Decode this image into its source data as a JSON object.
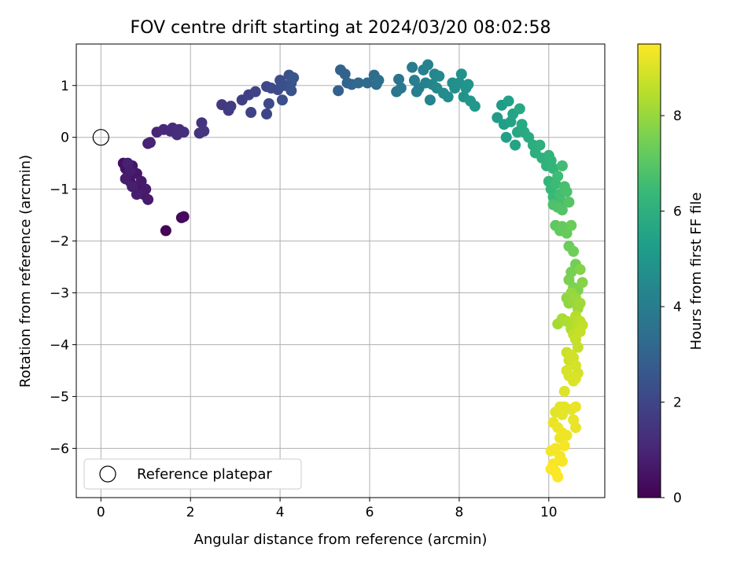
{
  "chart_data": {
    "type": "scatter",
    "title": "FOV centre drift starting at 2024/03/20 08:02:58",
    "xlabel": "Angular distance from reference (arcmin)",
    "ylabel": "Rotation from reference (arcmin)",
    "xlim": [
      -0.55,
      11.25
    ],
    "ylim": [
      -6.95,
      1.8
    ],
    "xticks": [
      0,
      2,
      4,
      6,
      8,
      10
    ],
    "yticks": [
      1,
      0,
      -1,
      -2,
      -3,
      -4,
      -5,
      -6
    ],
    "xtick_labels": [
      "0",
      "2",
      "4",
      "6",
      "8",
      "10"
    ],
    "ytick_labels": [
      "1",
      "0",
      "−1",
      "−2",
      "−3",
      "−4",
      "−5",
      "−6"
    ],
    "grid": true,
    "legend": {
      "placement": "lower-left",
      "entries": [
        "Reference platepar"
      ]
    },
    "reference_point": {
      "x": 0,
      "y": 0
    },
    "colorbar": {
      "label": "Hours from first FF file",
      "colormap": "viridis",
      "range": [
        0,
        9.5
      ],
      "ticks": [
        0,
        2,
        4,
        6,
        8
      ],
      "tick_labels": [
        "0",
        "2",
        "4",
        "6",
        "8"
      ],
      "colors": [
        "#440154",
        "#482878",
        "#3e4989",
        "#31688e",
        "#26828e",
        "#1f9e89",
        "#35b779",
        "#6ece58",
        "#b5de2b",
        "#fde725"
      ]
    },
    "series": [
      {
        "points": [
          [
            1.45,
            -1.8,
            0.1
          ],
          [
            1.8,
            -1.55,
            0.2
          ],
          [
            1.85,
            -1.53,
            0.25
          ],
          [
            0.5,
            -0.5,
            0.4
          ],
          [
            0.55,
            -0.6,
            0.45
          ],
          [
            0.6,
            -0.75,
            0.5
          ],
          [
            0.65,
            -0.85,
            0.5
          ],
          [
            0.7,
            -0.55,
            0.55
          ],
          [
            0.75,
            -0.95,
            0.55
          ],
          [
            0.8,
            -0.7,
            0.6
          ],
          [
            0.85,
            -1.05,
            0.6
          ],
          [
            0.9,
            -0.85,
            0.65
          ],
          [
            0.95,
            -1.1,
            0.65
          ],
          [
            1.0,
            -1.0,
            0.7
          ],
          [
            1.05,
            -1.2,
            0.7
          ],
          [
            0.55,
            -0.8,
            0.75
          ],
          [
            0.65,
            -0.65,
            0.75
          ],
          [
            0.7,
            -0.95,
            0.8
          ],
          [
            0.8,
            -1.1,
            0.8
          ],
          [
            0.6,
            -0.5,
            0.85
          ],
          [
            1.05,
            -0.12,
            0.9
          ],
          [
            1.1,
            -0.1,
            0.95
          ],
          [
            1.25,
            0.1,
            1.0
          ],
          [
            1.4,
            0.15,
            1.05
          ],
          [
            1.55,
            0.12,
            1.1
          ],
          [
            1.6,
            0.18,
            1.15
          ],
          [
            1.7,
            0.05,
            1.2
          ],
          [
            1.75,
            0.15,
            1.25
          ],
          [
            1.85,
            0.1,
            1.3
          ],
          [
            2.2,
            0.08,
            1.4
          ],
          [
            2.25,
            0.28,
            1.45
          ],
          [
            2.3,
            0.12,
            1.5
          ],
          [
            2.7,
            0.63,
            1.6
          ],
          [
            2.85,
            0.52,
            1.65
          ],
          [
            2.9,
            0.6,
            1.7
          ],
          [
            3.15,
            0.72,
            1.8
          ],
          [
            3.3,
            0.82,
            1.85
          ],
          [
            3.35,
            0.48,
            1.9
          ],
          [
            3.45,
            0.88,
            1.95
          ],
          [
            3.7,
            0.45,
            2.0
          ],
          [
            3.7,
            0.98,
            2.05
          ],
          [
            3.75,
            0.65,
            2.1
          ],
          [
            3.8,
            0.95,
            2.15
          ],
          [
            3.95,
            0.92,
            2.2
          ],
          [
            4.0,
            1.1,
            2.25
          ],
          [
            4.05,
            0.72,
            2.3
          ],
          [
            4.1,
            1.0,
            2.35
          ],
          [
            4.2,
            1.2,
            2.4
          ],
          [
            4.25,
            0.9,
            2.45
          ],
          [
            4.25,
            1.05,
            2.5
          ],
          [
            4.3,
            1.15,
            2.55
          ],
          [
            5.3,
            0.9,
            2.9
          ],
          [
            5.35,
            1.3,
            2.95
          ],
          [
            5.45,
            1.22,
            3.0
          ],
          [
            5.5,
            1.05,
            3.05
          ],
          [
            5.6,
            1.02,
            3.1
          ],
          [
            5.75,
            1.05,
            3.15
          ],
          [
            5.95,
            1.05,
            3.25
          ],
          [
            6.1,
            1.2,
            3.35
          ],
          [
            6.15,
            1.02,
            3.4
          ],
          [
            6.2,
            1.1,
            3.45
          ],
          [
            6.6,
            0.88,
            3.7
          ],
          [
            6.65,
            1.12,
            3.75
          ],
          [
            6.7,
            0.95,
            3.8
          ],
          [
            6.95,
            1.35,
            3.95
          ],
          [
            7.0,
            1.1,
            4.0
          ],
          [
            7.05,
            0.88,
            4.05
          ],
          [
            7.1,
            0.95,
            4.1
          ],
          [
            7.2,
            1.3,
            4.15
          ],
          [
            7.25,
            1.05,
            4.2
          ],
          [
            7.3,
            1.4,
            4.25
          ],
          [
            7.35,
            0.72,
            4.3
          ],
          [
            7.4,
            1.02,
            4.35
          ],
          [
            7.45,
            1.22,
            4.4
          ],
          [
            7.5,
            0.95,
            4.45
          ],
          [
            7.55,
            1.18,
            4.5
          ],
          [
            7.65,
            0.85,
            4.55
          ],
          [
            7.75,
            0.78,
            4.6
          ],
          [
            7.85,
            1.05,
            4.65
          ],
          [
            7.9,
            0.95,
            4.7
          ],
          [
            8.0,
            1.05,
            4.75
          ],
          [
            8.05,
            1.22,
            4.8
          ],
          [
            8.1,
            0.78,
            4.85
          ],
          [
            8.15,
            0.95,
            4.9
          ],
          [
            8.2,
            1.02,
            4.95
          ],
          [
            8.25,
            0.7,
            5.0
          ],
          [
            8.35,
            0.6,
            5.05
          ],
          [
            8.85,
            0.38,
            5.2
          ],
          [
            8.95,
            0.62,
            5.25
          ],
          [
            9.0,
            0.25,
            5.3
          ],
          [
            9.05,
            0.0,
            5.35
          ],
          [
            9.1,
            0.7,
            5.4
          ],
          [
            9.15,
            0.3,
            5.45
          ],
          [
            9.2,
            0.45,
            5.5
          ],
          [
            9.25,
            -0.15,
            5.55
          ],
          [
            9.3,
            0.1,
            5.6
          ],
          [
            9.35,
            0.55,
            5.65
          ],
          [
            9.4,
            0.25,
            5.7
          ],
          [
            9.45,
            0.1,
            5.75
          ],
          [
            9.55,
            0.0,
            5.8
          ],
          [
            9.65,
            -0.15,
            5.9
          ],
          [
            9.7,
            -0.3,
            5.95
          ],
          [
            9.8,
            -0.15,
            6.0
          ],
          [
            9.85,
            -0.4,
            6.05
          ],
          [
            9.95,
            -0.55,
            6.1
          ],
          [
            10.0,
            -0.35,
            6.15
          ],
          [
            10.05,
            -0.45,
            6.2
          ],
          [
            10.1,
            -0.6,
            6.25
          ],
          [
            10.0,
            -0.85,
            6.3
          ],
          [
            10.05,
            -1.0,
            6.35
          ],
          [
            10.1,
            -1.15,
            6.4
          ],
          [
            10.15,
            -0.9,
            6.45
          ],
          [
            10.2,
            -0.75,
            6.5
          ],
          [
            10.3,
            -0.55,
            6.55
          ],
          [
            10.25,
            -1.1,
            6.6
          ],
          [
            10.3,
            -1.25,
            6.65
          ],
          [
            10.35,
            -0.95,
            6.7
          ],
          [
            10.4,
            -1.05,
            6.75
          ],
          [
            10.1,
            -1.3,
            6.8
          ],
          [
            10.2,
            -1.35,
            6.85
          ],
          [
            10.3,
            -1.4,
            6.9
          ],
          [
            10.45,
            -1.25,
            6.95
          ],
          [
            10.15,
            -1.7,
            7.1
          ],
          [
            10.25,
            -1.8,
            7.15
          ],
          [
            10.3,
            -1.72,
            7.2
          ],
          [
            10.4,
            -1.85,
            7.25
          ],
          [
            10.5,
            -1.7,
            7.3
          ],
          [
            10.45,
            -2.1,
            7.35
          ],
          [
            10.55,
            -2.2,
            7.4
          ],
          [
            10.6,
            -2.45,
            7.45
          ],
          [
            10.5,
            -2.6,
            7.5
          ],
          [
            10.45,
            -2.75,
            7.55
          ],
          [
            10.55,
            -2.9,
            7.6
          ],
          [
            10.65,
            -2.95,
            7.65
          ],
          [
            10.7,
            -2.55,
            7.7
          ],
          [
            10.75,
            -2.8,
            7.75
          ],
          [
            10.4,
            -3.1,
            7.85
          ],
          [
            10.45,
            -3.2,
            7.9
          ],
          [
            10.5,
            -3.0,
            7.95
          ],
          [
            10.55,
            -3.15,
            8.0
          ],
          [
            10.6,
            -3.1,
            8.05
          ],
          [
            10.65,
            -3.3,
            8.1
          ],
          [
            10.7,
            -3.2,
            8.15
          ],
          [
            10.2,
            -3.6,
            8.2
          ],
          [
            10.3,
            -3.5,
            8.25
          ],
          [
            10.4,
            -3.55,
            8.3
          ],
          [
            10.5,
            -3.7,
            8.35
          ],
          [
            10.55,
            -3.55,
            8.4
          ],
          [
            10.6,
            -3.45,
            8.45
          ],
          [
            10.65,
            -3.65,
            8.5
          ],
          [
            10.7,
            -3.55,
            8.55
          ],
          [
            10.75,
            -3.62,
            8.6
          ],
          [
            10.55,
            -3.8,
            8.6
          ],
          [
            10.6,
            -3.9,
            8.65
          ],
          [
            10.65,
            -4.05,
            8.7
          ],
          [
            10.7,
            -3.75,
            8.7
          ],
          [
            10.4,
            -4.15,
            8.75
          ],
          [
            10.45,
            -4.3,
            8.8
          ],
          [
            10.5,
            -4.2,
            8.85
          ],
          [
            10.55,
            -4.25,
            8.85
          ],
          [
            10.6,
            -4.4,
            8.9
          ],
          [
            10.65,
            -4.55,
            8.9
          ],
          [
            10.4,
            -4.5,
            8.95
          ],
          [
            10.45,
            -4.6,
            8.95
          ],
          [
            10.55,
            -4.7,
            9.0
          ],
          [
            10.6,
            -4.65,
            9.0
          ],
          [
            10.35,
            -4.9,
            9.05
          ],
          [
            10.15,
            -5.3,
            9.1
          ],
          [
            10.25,
            -5.2,
            9.1
          ],
          [
            10.3,
            -5.35,
            9.15
          ],
          [
            10.35,
            -5.2,
            9.15
          ],
          [
            10.5,
            -5.25,
            9.15
          ],
          [
            10.55,
            -5.45,
            9.2
          ],
          [
            10.6,
            -5.6,
            9.2
          ],
          [
            10.6,
            -5.2,
            9.2
          ],
          [
            10.1,
            -5.5,
            9.2
          ],
          [
            10.2,
            -5.6,
            9.25
          ],
          [
            10.25,
            -5.8,
            9.25
          ],
          [
            10.3,
            -5.7,
            9.3
          ],
          [
            10.4,
            -5.75,
            9.3
          ],
          [
            10.15,
            -6.0,
            9.35
          ],
          [
            10.05,
            -6.05,
            9.35
          ],
          [
            10.25,
            -6.15,
            9.35
          ],
          [
            10.3,
            -6.25,
            9.4
          ],
          [
            10.35,
            -5.95,
            9.4
          ],
          [
            10.1,
            -6.3,
            9.4
          ],
          [
            10.15,
            -6.45,
            9.45
          ],
          [
            10.2,
            -6.55,
            9.45
          ],
          [
            10.05,
            -6.4,
            9.45
          ]
        ]
      }
    ]
  }
}
